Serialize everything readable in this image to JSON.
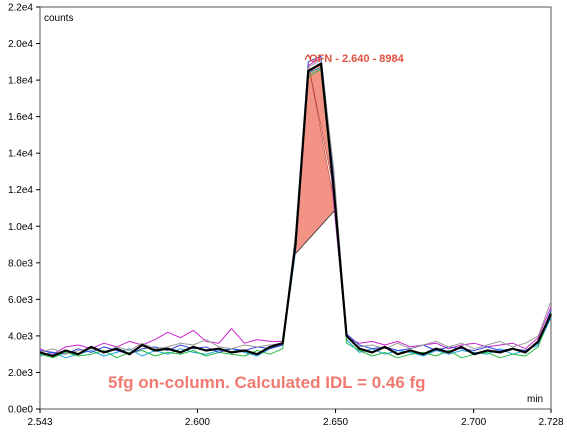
{
  "chart_data": {
    "type": "line",
    "title": "",
    "xlabel": "min",
    "ylabel": "counts",
    "xlim": [
      2.543,
      2.728
    ],
    "ylim": [
      0,
      22000
    ],
    "x_ticks": [
      {
        "value": 2.543,
        "label": "2.543"
      },
      {
        "value": 2.6,
        "label": "2.600"
      },
      {
        "value": 2.65,
        "label": "2.650"
      },
      {
        "value": 2.7,
        "label": "2.700"
      },
      {
        "value": 2.728,
        "label": "2.728"
      }
    ],
    "y_ticks": [
      {
        "value": 0,
        "label": "0.0e0"
      },
      {
        "value": 2000,
        "label": "2.0e3"
      },
      {
        "value": 4000,
        "label": "4.0e3"
      },
      {
        "value": 6000,
        "label": "6.0e3"
      },
      {
        "value": 8000,
        "label": "8.0e3"
      },
      {
        "value": 10000,
        "label": "1.0e4"
      },
      {
        "value": 12000,
        "label": "1.2e4"
      },
      {
        "value": 14000,
        "label": "1.4e4"
      },
      {
        "value": 16000,
        "label": "1.6e4"
      },
      {
        "value": 18000,
        "label": "1.8e4"
      },
      {
        "value": 20000,
        "label": "2.0e4"
      },
      {
        "value": 22000,
        "label": "2.2e4"
      }
    ],
    "grid": false,
    "legend": "none",
    "peak": {
      "x": 2.64,
      "y": 19000,
      "label": "OFN - 2.640 - 8984",
      "integration_start": 2.635,
      "integration_end": 2.65,
      "fill_color": "#f08070"
    },
    "annotation": {
      "text": "5fg on-column. Calculated IDL = 0.46 fg",
      "color": "#f07a70"
    },
    "series": [
      {
        "color": "#000000",
        "width": 2.2,
        "values": [
          3100,
          2900,
          3200,
          3000,
          3400,
          3100,
          3300,
          3000,
          3500,
          3200,
          3300,
          3100,
          3400,
          3200,
          3300,
          3100,
          3200,
          3000,
          3400,
          3600,
          9000,
          18500,
          18900,
          12000,
          4000,
          3300,
          3100,
          3400,
          3000,
          3200,
          3000,
          3300,
          3100,
          3400,
          3000,
          3200,
          3100,
          3300,
          3100,
          3700,
          5200
        ]
      },
      {
        "color": "#cc22cc",
        "width": 1.0,
        "values": [
          3300,
          3000,
          3400,
          3500,
          3300,
          3600,
          3400,
          3700,
          3500,
          3800,
          4200,
          3900,
          4300,
          3700,
          3600,
          4400,
          3600,
          3800,
          3700,
          3700,
          8800,
          18800,
          19200,
          11200,
          3900,
          3600,
          3700,
          3500,
          3700,
          3400,
          3500,
          3600,
          3300,
          3500,
          3600,
          3400,
          3500,
          3600,
          3300,
          3900,
          5600
        ]
      },
      {
        "color": "#1aa6e0",
        "width": 1.0,
        "values": [
          2900,
          3100,
          2800,
          3000,
          3200,
          2900,
          3100,
          3300,
          2900,
          3200,
          3000,
          3300,
          3100,
          3000,
          3200,
          3300,
          3100,
          2900,
          3300,
          3500,
          8600,
          18400,
          18700,
          12500,
          3800,
          3100,
          3300,
          3000,
          3200,
          3100,
          2900,
          3200,
          3000,
          3200,
          3100,
          3000,
          3300,
          3000,
          3200,
          3500,
          5000
        ]
      },
      {
        "color": "#22bb44",
        "width": 1.0,
        "values": [
          3000,
          2800,
          3100,
          2900,
          3000,
          3200,
          2800,
          3100,
          3200,
          2900,
          3100,
          3000,
          3200,
          2900,
          3100,
          3000,
          2900,
          3200,
          3000,
          3300,
          9200,
          18200,
          18600,
          11600,
          3600,
          3200,
          2900,
          3100,
          2800,
          3000,
          3100,
          2900,
          3200,
          2800,
          3000,
          3100,
          2800,
          3000,
          2900,
          3400,
          5300
        ]
      },
      {
        "color": "#3344dd",
        "width": 1.0,
        "values": [
          3200,
          3100,
          3000,
          3300,
          3100,
          3400,
          3200,
          3000,
          3300,
          3400,
          3200,
          3500,
          3300,
          3400,
          3100,
          3300,
          3200,
          3400,
          3300,
          3500,
          9400,
          19000,
          19300,
          12800,
          4100,
          3500,
          3300,
          3400,
          3200,
          3300,
          3500,
          3200,
          3400,
          3300,
          3200,
          3400,
          3200,
          3300,
          3200,
          3600,
          5400
        ]
      },
      {
        "color": "#999999",
        "width": 1.0,
        "values": [
          3100,
          3300,
          3000,
          3200,
          3300,
          3100,
          3400,
          3200,
          3600,
          3300,
          3400,
          3600,
          3500,
          3800,
          3400,
          3300,
          3500,
          3400,
          3500,
          3600,
          9600,
          18700,
          19100,
          13100,
          3900,
          3400,
          3500,
          3300,
          3600,
          3300,
          3500,
          3700,
          3400,
          3600,
          3300,
          3500,
          3700,
          3400,
          3600,
          4000,
          5900
        ]
      }
    ]
  }
}
